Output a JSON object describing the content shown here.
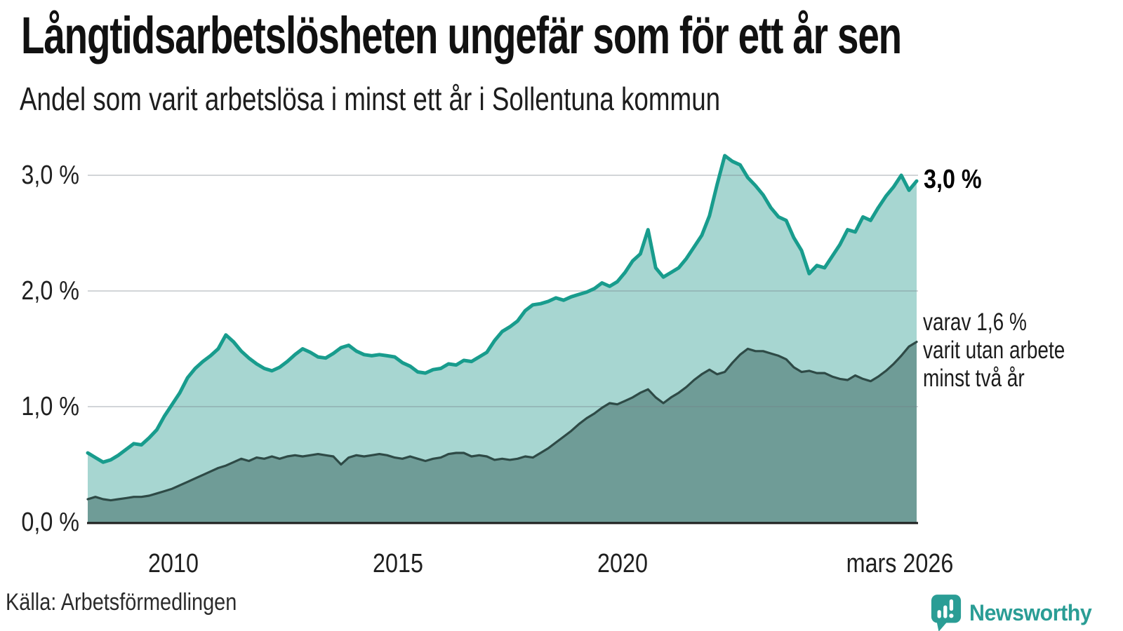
{
  "header": {
    "title": "Långtidsarbetslösheten ungefär som för ett år sen",
    "subtitle": "Andel som varit arbetslösa i minst ett år i Sollentuna kommun"
  },
  "footer": {
    "source": "Källa: Arbetsförmedlingen",
    "brand_name": "Newsworthy"
  },
  "colors": {
    "total_line": "#189c8d",
    "total_fill": "#a7d6d1",
    "two_year_line": "#2e4a46",
    "two_year_fill": "#6f9c97",
    "gridline": "rgba(115,125,135,0.32)",
    "axis": "#1c1c1c",
    "brand_teal": "#2a9d95"
  },
  "chart_data": {
    "type": "area",
    "title": "Långtidsarbetslösheten ungefär som för ett år sen",
    "subtitle": "Andel som varit arbetslösa i minst ett år i Sollentuna kommun",
    "unit": "%",
    "x_start_year": 2008.08,
    "x_step_years": 0.1667,
    "xlabel": "",
    "ylabel": "",
    "ylim": [
      0,
      3.3
    ],
    "grid": "horizontal",
    "legend_position": "inline-right",
    "y_ticks": [
      {
        "label": "0,0 %",
        "value": 0
      },
      {
        "label": "1,0 %",
        "value": 1
      },
      {
        "label": "2,0 %",
        "value": 2
      },
      {
        "label": "3,0 %",
        "value": 3
      }
    ],
    "x_ticks": [
      {
        "label": "2010",
        "year": 2010
      },
      {
        "label": "2015",
        "year": 2015
      },
      {
        "label": "2020",
        "year": 2020
      },
      {
        "label": "mars 2026",
        "year": 2026.17
      }
    ],
    "annotations": {
      "end_total": "3,0 %",
      "two_year": [
        "varav 1,6 %",
        "varit utan arbete",
        "minst två år"
      ]
    },
    "series": [
      {
        "name": "Andel arbetslösa minst ett år",
        "end_value_label": "3,0 %",
        "values": [
          0.6,
          0.56,
          0.52,
          0.54,
          0.58,
          0.63,
          0.68,
          0.67,
          0.73,
          0.8,
          0.92,
          1.02,
          1.12,
          1.25,
          1.33,
          1.39,
          1.44,
          1.5,
          1.62,
          1.56,
          1.48,
          1.42,
          1.37,
          1.33,
          1.31,
          1.34,
          1.39,
          1.45,
          1.5,
          1.47,
          1.43,
          1.42,
          1.46,
          1.51,
          1.53,
          1.48,
          1.45,
          1.44,
          1.45,
          1.44,
          1.43,
          1.38,
          1.35,
          1.3,
          1.29,
          1.32,
          1.33,
          1.37,
          1.36,
          1.4,
          1.39,
          1.43,
          1.47,
          1.57,
          1.65,
          1.69,
          1.74,
          1.83,
          1.88,
          1.89,
          1.91,
          1.94,
          1.92,
          1.95,
          1.97,
          1.99,
          2.02,
          2.07,
          2.04,
          2.08,
          2.16,
          2.26,
          2.32,
          2.53,
          2.2,
          2.12,
          2.16,
          2.2,
          2.28,
          2.38,
          2.48,
          2.65,
          2.92,
          3.17,
          3.12,
          3.09,
          2.98,
          2.91,
          2.83,
          2.72,
          2.64,
          2.61,
          2.46,
          2.35,
          2.15,
          2.22,
          2.2,
          2.3,
          2.4,
          2.53,
          2.51,
          2.64,
          2.61,
          2.72,
          2.82,
          2.9,
          3.0,
          2.87,
          2.95
        ]
      },
      {
        "name": "varav utan arbete minst två år",
        "end_value_label": "varav 1,6 %",
        "values": [
          0.2,
          0.22,
          0.2,
          0.19,
          0.2,
          0.21,
          0.22,
          0.22,
          0.23,
          0.25,
          0.27,
          0.29,
          0.32,
          0.35,
          0.38,
          0.41,
          0.44,
          0.47,
          0.49,
          0.52,
          0.55,
          0.53,
          0.56,
          0.55,
          0.57,
          0.55,
          0.57,
          0.58,
          0.57,
          0.58,
          0.59,
          0.58,
          0.57,
          0.5,
          0.56,
          0.58,
          0.57,
          0.58,
          0.59,
          0.58,
          0.56,
          0.55,
          0.57,
          0.55,
          0.53,
          0.55,
          0.56,
          0.59,
          0.6,
          0.6,
          0.57,
          0.58,
          0.57,
          0.54,
          0.55,
          0.54,
          0.55,
          0.57,
          0.56,
          0.6,
          0.64,
          0.69,
          0.74,
          0.79,
          0.85,
          0.9,
          0.94,
          0.99,
          1.03,
          1.02,
          1.05,
          1.08,
          1.12,
          1.15,
          1.08,
          1.03,
          1.08,
          1.12,
          1.17,
          1.23,
          1.28,
          1.32,
          1.28,
          1.3,
          1.38,
          1.45,
          1.5,
          1.48,
          1.48,
          1.46,
          1.44,
          1.41,
          1.34,
          1.3,
          1.31,
          1.29,
          1.29,
          1.26,
          1.24,
          1.23,
          1.27,
          1.24,
          1.22,
          1.26,
          1.31,
          1.37,
          1.44,
          1.52,
          1.56
        ]
      }
    ]
  }
}
